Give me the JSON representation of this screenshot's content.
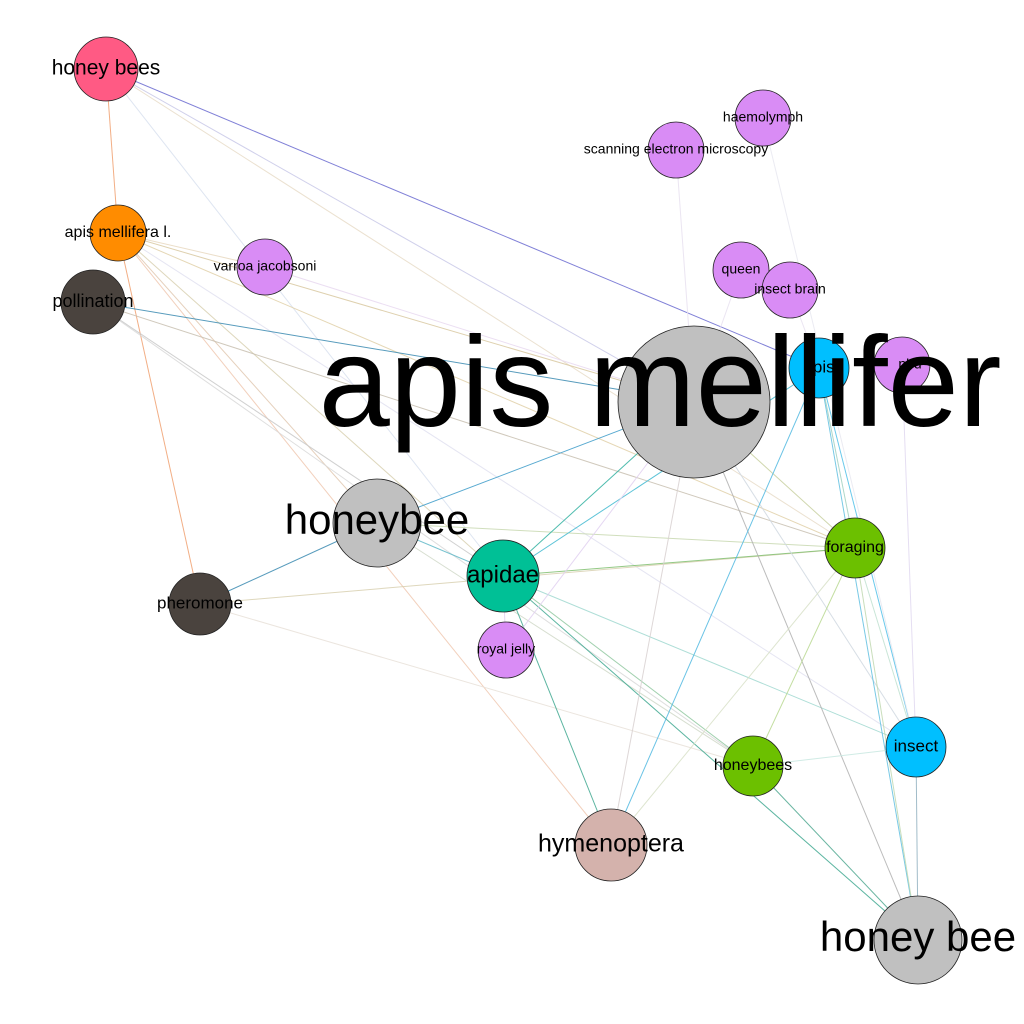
{
  "graph": {
    "nodes": [
      {
        "id": "apis_mellifera",
        "label": "apis mellifer",
        "color": "#c0c0c0"
      },
      {
        "id": "honeybee",
        "label": "honeybee",
        "color": "#c0c0c0"
      },
      {
        "id": "honey_bee",
        "label": "honey bee",
        "color": "#c0c0c0"
      },
      {
        "id": "honey_bees",
        "label": "honey bees",
        "color": "#ff5a84"
      },
      {
        "id": "apis_mellifera_l",
        "label": "apis mellifera l.",
        "color": "#ff8c00"
      },
      {
        "id": "pollination",
        "label": "pollination",
        "color": "#4a433e"
      },
      {
        "id": "pheromone",
        "label": "pheromone",
        "color": "#4a433e"
      },
      {
        "id": "varroa_jacobsoni",
        "label": "varroa jacobsoni",
        "color": "#d98cf5"
      },
      {
        "id": "haemolymph",
        "label": "haemolymph",
        "color": "#d98cf5"
      },
      {
        "id": "scanning_electron_microscopy",
        "label": "scanning electron microscopy",
        "color": "#d98cf5"
      },
      {
        "id": "queen",
        "label": "queen",
        "color": "#d98cf5"
      },
      {
        "id": "insect_brain",
        "label": "insect brain",
        "color": "#d98cf5"
      },
      {
        "id": "bumblebee",
        "label": "nbu",
        "color": "#d98cf5"
      },
      {
        "id": "royal_jelly",
        "label": "royal jelly",
        "color": "#d98cf5"
      },
      {
        "id": "apis",
        "label": "apis",
        "color": "#00bfff"
      },
      {
        "id": "insect",
        "label": "insect",
        "color": "#00bfff"
      },
      {
        "id": "apidae",
        "label": "apidae",
        "color": "#00c096"
      },
      {
        "id": "foraging",
        "label": "foraging",
        "color": "#6cc000"
      },
      {
        "id": "honeybees",
        "label": "honeybees",
        "color": "#6cc000"
      },
      {
        "id": "hymenoptera",
        "label": "hymenoptera",
        "color": "#d4b2ac"
      }
    ],
    "edges": [
      {
        "source": "honey_bees",
        "target": "apis",
        "color": "#6a6ad0"
      },
      {
        "source": "honey_bees",
        "target": "apis_mellifera_l",
        "color": "#f0a070"
      },
      {
        "source": "honey_bees",
        "target": "apis_mellifera",
        "color": "#c8c8e8"
      },
      {
        "source": "honey_bees",
        "target": "apidae",
        "color": "#d8e0ee"
      },
      {
        "source": "honey_bees",
        "target": "foraging",
        "color": "#e8dcc8"
      },
      {
        "source": "apis_mellifera_l",
        "target": "pheromone",
        "color": "#f0a070"
      },
      {
        "source": "apis_mellifera_l",
        "target": "apis_mellifera",
        "color": "#d8c8a0"
      },
      {
        "source": "apis_mellifera_l",
        "target": "foraging",
        "color": "#e0d0a8"
      },
      {
        "source": "apis_mellifera_l",
        "target": "apidae",
        "color": "#d8d0b0"
      },
      {
        "source": "apis_mellifera_l",
        "target": "honeybee",
        "color": "#e0c8b0"
      },
      {
        "source": "apis_mellifera_l",
        "target": "hymenoptera",
        "color": "#f0c8b0"
      },
      {
        "source": "apis_mellifera_l",
        "target": "varroa_jacobsoni",
        "color": "#e8d8c0"
      },
      {
        "source": "apis_mellifera_l",
        "target": "insect",
        "color": "#e0e0f0"
      },
      {
        "source": "pollination",
        "target": "apis_mellifera",
        "color": "#3a8ab0"
      },
      {
        "source": "pollination",
        "target": "foraging",
        "color": "#c8c0b0"
      },
      {
        "source": "pollination",
        "target": "apidae",
        "color": "#c8c8c8"
      },
      {
        "source": "pollination",
        "target": "honeybees",
        "color": "#d8d8d8"
      },
      {
        "source": "pheromone",
        "target": "honeybee",
        "color": "#3a8ab0"
      },
      {
        "source": "pheromone",
        "target": "foraging",
        "color": "#d8d0b0"
      },
      {
        "source": "pheromone",
        "target": "honeybees",
        "color": "#e8e0d8"
      },
      {
        "source": "honeybee",
        "target": "apis_mellifera",
        "color": "#3a9ac8"
      },
      {
        "source": "honeybee",
        "target": "apidae",
        "color": "#60b8c8"
      },
      {
        "source": "honeybee",
        "target": "foraging",
        "color": "#c8d8b0"
      },
      {
        "source": "honeybee",
        "target": "honeybees",
        "color": "#d0d8c8"
      },
      {
        "source": "apidae",
        "target": "apis_mellifera",
        "color": "#30b0a0"
      },
      {
        "source": "apidae",
        "target": "apis",
        "color": "#40b8d0"
      },
      {
        "source": "apidae",
        "target": "foraging",
        "color": "#80c070"
      },
      {
        "source": "apidae",
        "target": "hymenoptera",
        "color": "#40a890"
      },
      {
        "source": "apidae",
        "target": "honey_bee",
        "color": "#40a890"
      },
      {
        "source": "apidae",
        "target": "insect",
        "color": "#a0d8d0"
      },
      {
        "source": "apidae",
        "target": "honeybees",
        "color": "#90c8a0"
      },
      {
        "source": "apis_mellifera",
        "target": "honey_bee",
        "color": "#b0b0b0"
      },
      {
        "source": "apis_mellifera",
        "target": "foraging",
        "color": "#c8d0a0"
      },
      {
        "source": "apis_mellifera",
        "target": "insect",
        "color": "#d0d8e0"
      },
      {
        "source": "apis",
        "target": "hymenoptera",
        "color": "#50b8e0"
      },
      {
        "source": "apis",
        "target": "insect",
        "color": "#50c0e8"
      },
      {
        "source": "apis",
        "target": "honey_bee",
        "color": "#60c0e0"
      },
      {
        "source": "apis",
        "target": "foraging",
        "color": "#a0d0c0"
      },
      {
        "source": "foraging",
        "target": "honeybees",
        "color": "#b8d890"
      },
      {
        "source": "foraging",
        "target": "insect",
        "color": "#c0e0d0"
      },
      {
        "source": "foraging",
        "target": "honey_bee",
        "color": "#c0d8b0"
      },
      {
        "source": "honeybees",
        "target": "honey_bee",
        "color": "#50a890"
      },
      {
        "source": "honeybees",
        "target": "insect",
        "color": "#c8e8e0"
      },
      {
        "source": "hymenoptera",
        "target": "foraging",
        "color": "#d8e0c8"
      },
      {
        "source": "hymenoptera",
        "target": "apis_mellifera",
        "color": "#d8d0d0"
      },
      {
        "source": "insect",
        "target": "honey_bee",
        "color": "#90b0c0"
      },
      {
        "source": "royal_jelly",
        "target": "apis_mellifera",
        "color": "#e0d0f0"
      },
      {
        "source": "royal_jelly",
        "target": "apidae",
        "color": "#e0d0f0"
      },
      {
        "source": "scanning_electron_microscopy",
        "target": "apis_mellifera",
        "color": "#e8e0f0"
      },
      {
        "source": "haemolymph",
        "target": "insect",
        "color": "#e8e8f0"
      },
      {
        "source": "queen",
        "target": "apis_mellifera",
        "color": "#e8e0f0"
      },
      {
        "source": "insect_brain",
        "target": "apis",
        "color": "#e8e0f0"
      },
      {
        "source": "varroa_jacobsoni",
        "target": "apis_mellifera",
        "color": "#e8d8f0"
      },
      {
        "source": "bumblebee",
        "target": "insect",
        "color": "#e0d8f0"
      }
    ]
  }
}
